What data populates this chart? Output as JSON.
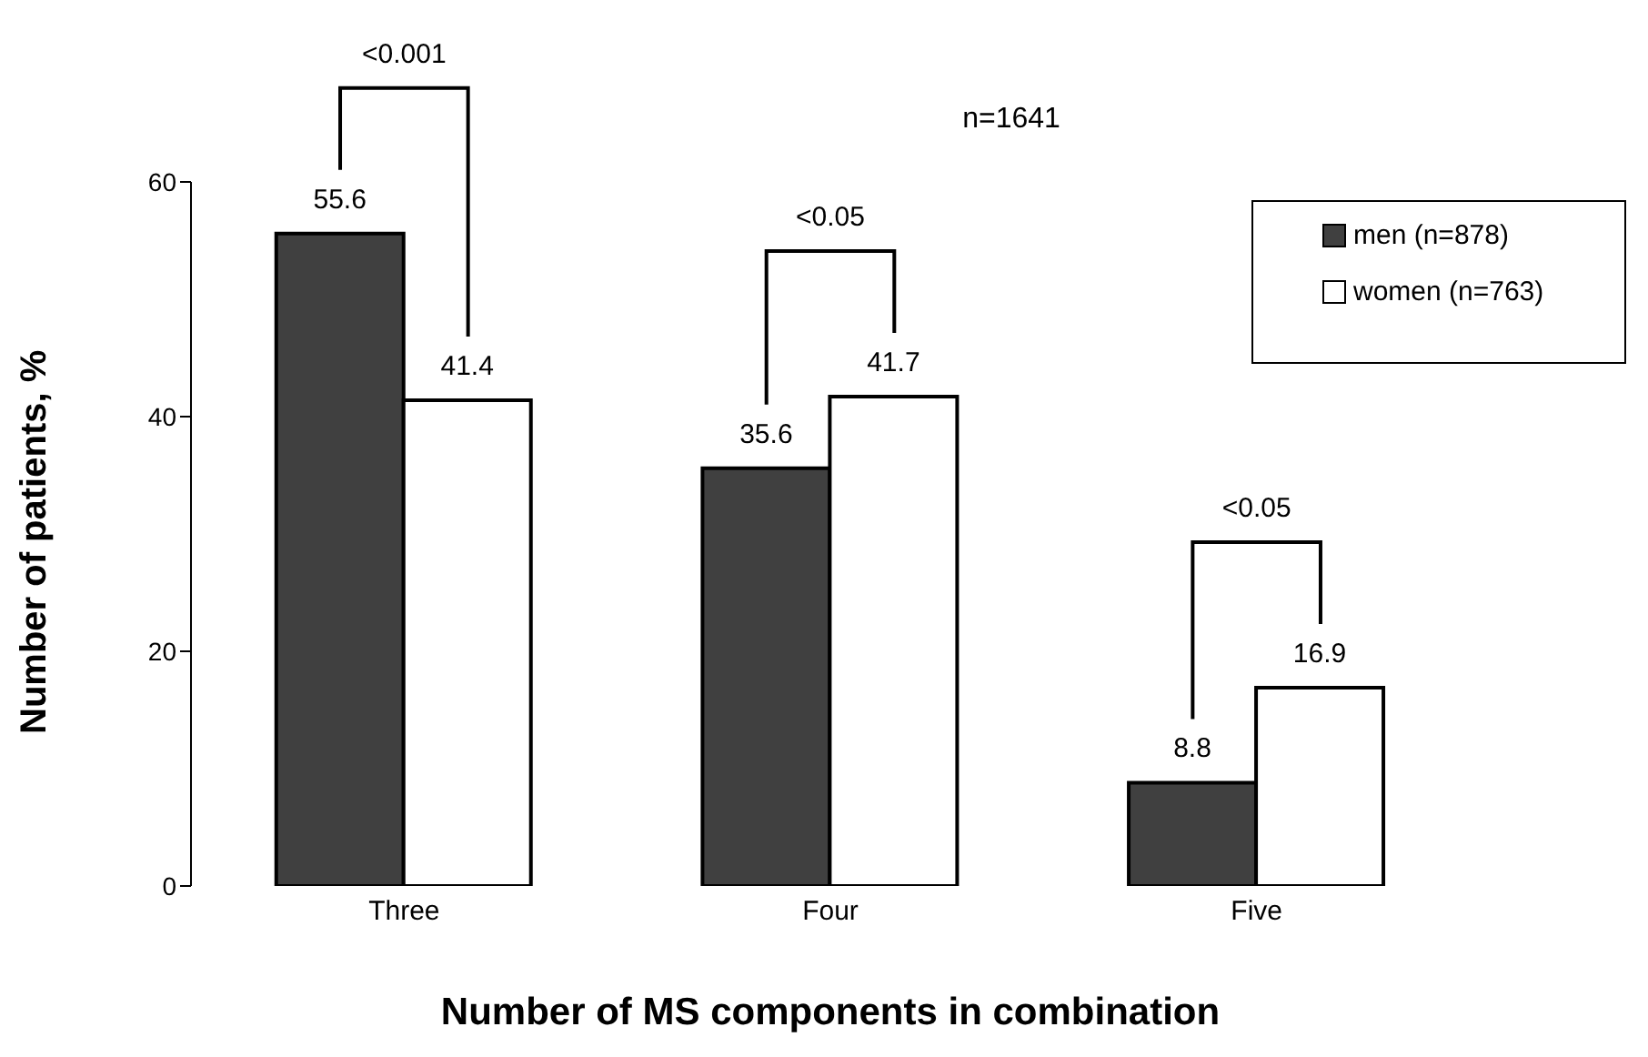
{
  "chart_data": {
    "type": "bar",
    "xlabel": "Number of MS components in combination",
    "ylabel": "Number of patients, %",
    "categories": [
      "Three",
      "Four",
      "Five"
    ],
    "series": [
      {
        "name": "men (n=878)",
        "color": "#404040",
        "values": [
          55.6,
          35.6,
          8.8
        ]
      },
      {
        "name": "women (n=763)",
        "color": "#ffffff",
        "values": [
          41.4,
          41.7,
          16.9
        ]
      }
    ],
    "ylim": [
      0,
      60
    ],
    "yticks": [
      0,
      20,
      40,
      60
    ],
    "data_labels": true,
    "grid": false,
    "legend": "top right",
    "annotations": [
      "<0.001",
      "<0.05",
      "<0.05",
      "n=1641"
    ]
  }
}
